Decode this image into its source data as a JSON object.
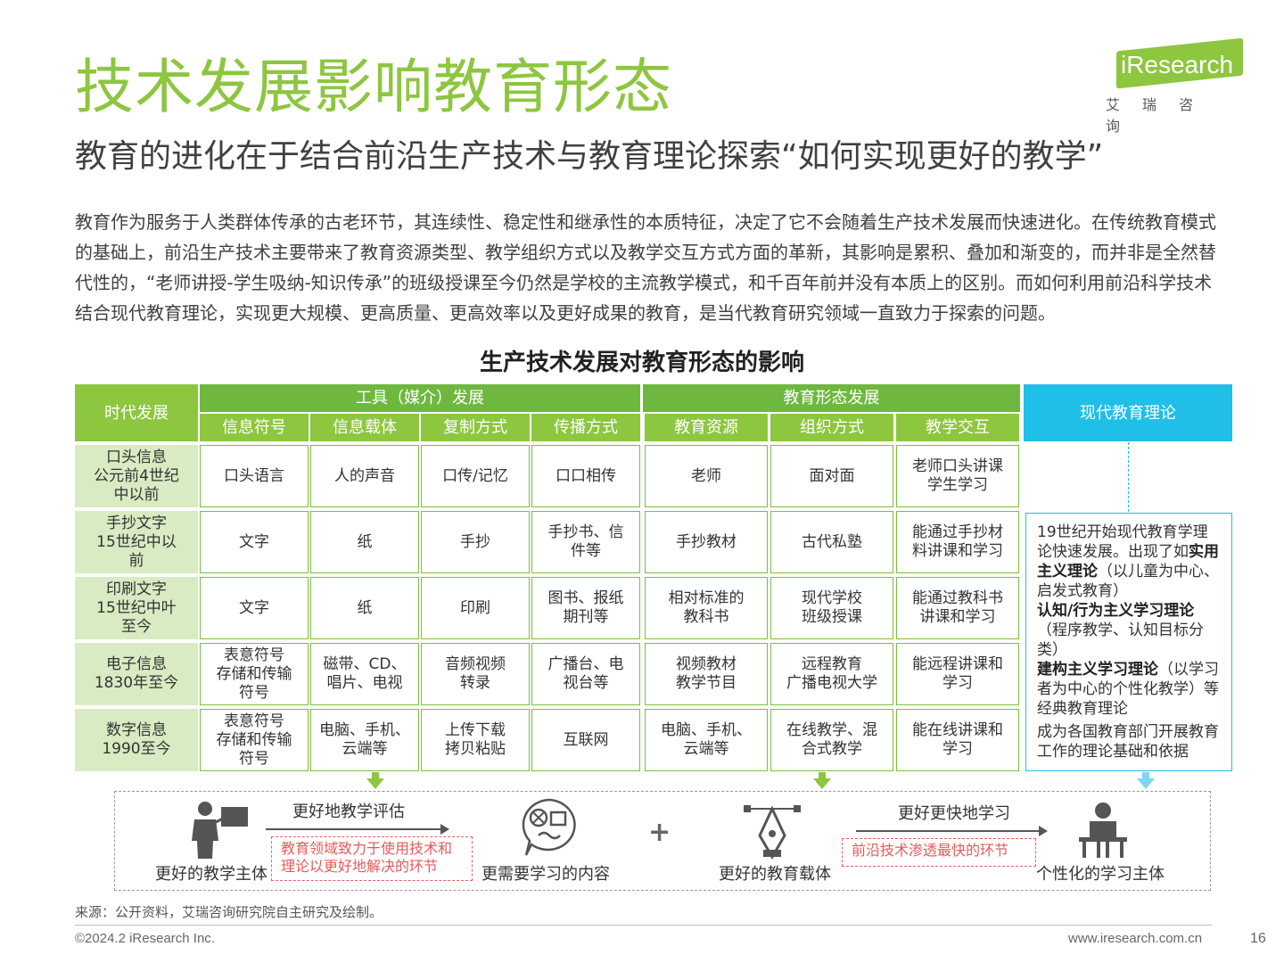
{
  "title": "技术发展影响教育形态",
  "subtitle": "教育的进化在于结合前沿生产技术与教育理论探索“如何实现更好的教学”",
  "logo": {
    "text": "iResearch",
    "cn": "艾瑞咨询"
  },
  "intro": "教育作为服务于人类群体传承的古老环节，其连续性、稳定性和继承性的本质特征，决定了它不会随着生产技术发展而快速进化。在传统教育模式的基础上，前沿生产技术主要带来了教育资源类型、教学组织方式以及教学交互方式方面的革新，其影响是累积、叠加和渐变的，而并非是全然替代性的，“老师讲授-学生吸纳-知识传承”的班级授课至今仍然是学校的主流教学模式，和千百年前并没有本质上的区别。而如何利用前沿科学技术结合现代教育理论，实现更大规模、更高质量、更高效率以及更好成果的教育，是当代教育研究领域一直致力于探索的问题。",
  "table_title": "生产技术发展对教育形态的影响",
  "headers": {
    "era": "时代发展",
    "tools": "工具（媒介）发展",
    "forms": "教育形态发展",
    "theory": "现代教育理论",
    "sub": [
      "信息符号",
      "信息载体",
      "复制方式",
      "传播方式",
      "教育资源",
      "组织方式",
      "教学交互"
    ]
  },
  "rows": [
    {
      "era": "口头信息\n公元前4世纪\n中以前",
      "cells": [
        "口头语言",
        "人的声音",
        "口传/记忆",
        "口口相传",
        "老师",
        "面对面",
        "老师口头讲课\n学生学习"
      ]
    },
    {
      "era": "手抄文字\n15世纪中以\n前",
      "cells": [
        "文字",
        "纸",
        "手抄",
        "手抄书、信\n件等",
        "手抄教材",
        "古代私塾",
        "能通过手抄材\n料讲课和学习"
      ]
    },
    {
      "era": "印刷文字\n15世纪中叶\n至今",
      "cells": [
        "文字",
        "纸",
        "印刷",
        "图书、报纸\n期刊等",
        "相对标准的\n教科书",
        "现代学校\n班级授课",
        "能通过教科书\n讲课和学习"
      ]
    },
    {
      "era": "电子信息\n1830年至今",
      "cells": [
        "表意符号\n存储和传输\n符号",
        "磁带、CD、\n唱片、电视",
        "音频视频\n转录",
        "广播台、电\n视台等",
        "视频教材\n教学节目",
        "远程教育\n广播电视大学",
        "能远程讲课和\n学习"
      ]
    },
    {
      "era": "数字信息\n1990至今",
      "cells": [
        "表意符号\n存储和传输\n符号",
        "电脑、手机、\n云端等",
        "上传下载\n拷贝粘贴",
        "互联网",
        "电脑、手机、\n云端等",
        "在线教学、混\n合式教学",
        "能在线讲课和\n学习"
      ]
    }
  ],
  "theory": {
    "p1": "19世纪开始现代教育学理论快速发展。出现了如",
    "t1": "实用主义理论",
    "p2": "（以儿童为中心、启发式教育）",
    "t2": "认知/行为主义学习理论",
    "p3": "（程序教学、认知目标分类）",
    "t3": "建构主义学习理论",
    "p4": "（以学习者为中心的个性化教学）等经典教育理论",
    "p5": "成为各国教育部门开展教育工作的理论基础和依据"
  },
  "bottom": {
    "subject": "更好的教学主体",
    "eval": "更好地教学评估",
    "note_left": "教育领域致力于使用技术和\n理论以更好地解决的环节",
    "content": "更需要学习的内容",
    "carrier": "更好的教育载体",
    "faster": "更好更快地学习",
    "note_right": "前沿技术渗透最快的环节",
    "learner": "个性化的学习主体"
  },
  "colors": {
    "green": "#8dc63f",
    "dark_green": "#6fb83f",
    "light_green": "#d8ebc2",
    "blue": "#1fbfe8",
    "red": "#e85a5a"
  },
  "source": "来源：公开资料，艾瑞咨询研究院自主研究及绘制。",
  "footer": {
    "copyright": "©2024.2 iResearch Inc.",
    "url": "www.iresearch.com.cn",
    "page": "16"
  }
}
